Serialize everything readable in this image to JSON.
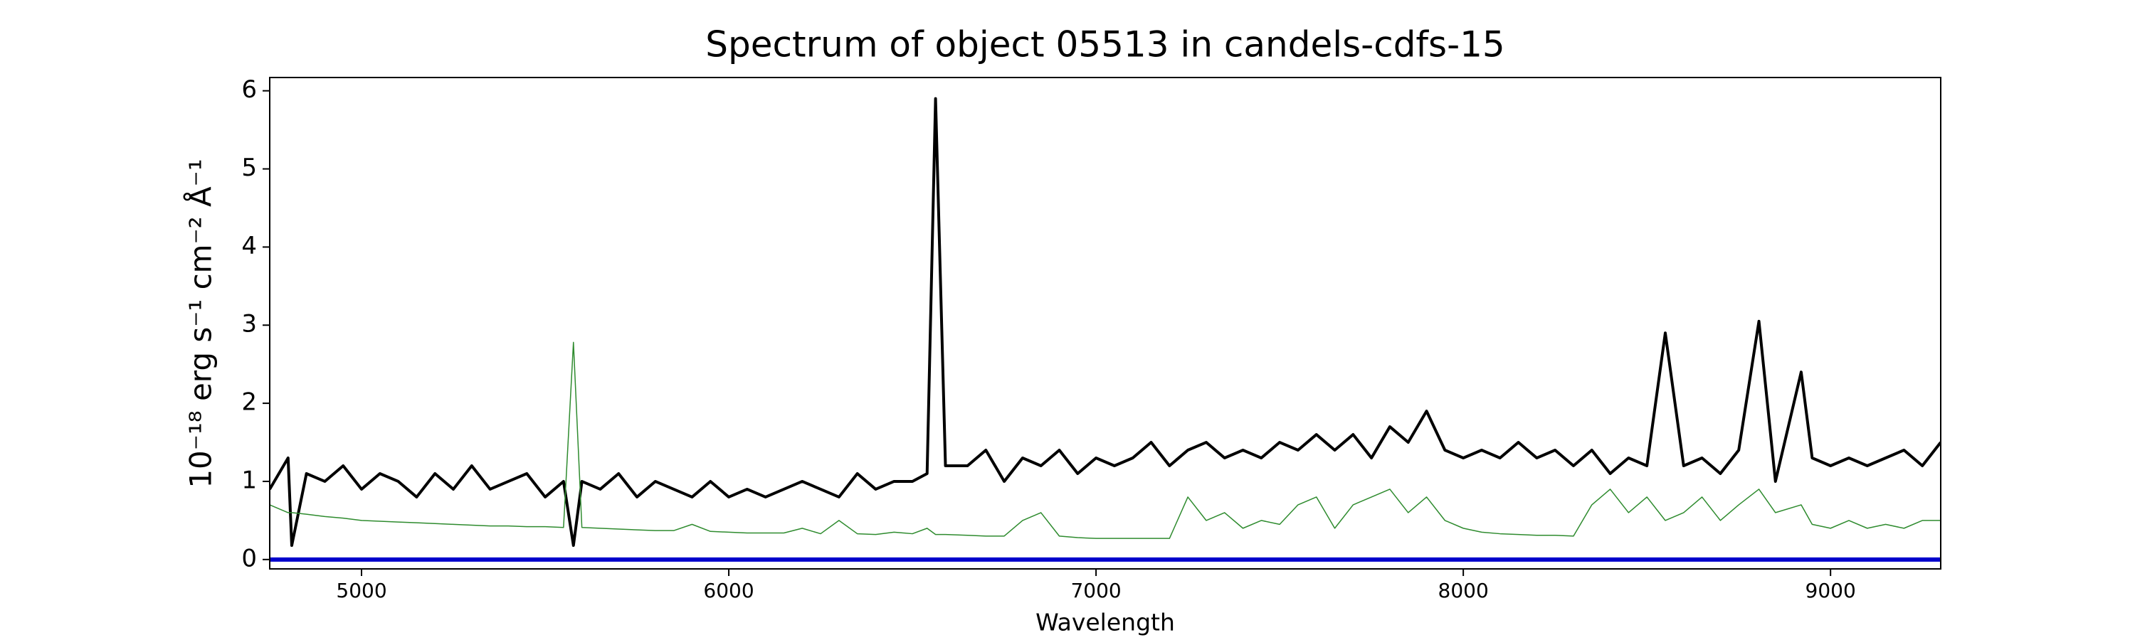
{
  "chart_data": {
    "type": "line",
    "title": "Spectrum of object 05513 in candels-cdfs-15",
    "xlabel": "Wavelength",
    "ylabel": "10⁻¹⁸ erg s⁻¹ cm⁻² Å⁻¹",
    "x": [
      4750,
      4800,
      4810,
      4850,
      4900,
      4950,
      5000,
      5050,
      5100,
      5150,
      5200,
      5250,
      5300,
      5350,
      5400,
      5450,
      5500,
      5550,
      5577,
      5600,
      5650,
      5700,
      5750,
      5800,
      5850,
      5900,
      5950,
      6000,
      6050,
      6100,
      6150,
      6200,
      6250,
      6300,
      6350,
      6400,
      6450,
      6500,
      6540,
      6563,
      6590,
      6650,
      6700,
      6750,
      6800,
      6850,
      6900,
      6950,
      7000,
      7050,
      7100,
      7150,
      7200,
      7250,
      7300,
      7350,
      7400,
      7450,
      7500,
      7550,
      7600,
      7650,
      7700,
      7750,
      7800,
      7850,
      7900,
      7950,
      8000,
      8050,
      8100,
      8150,
      8200,
      8250,
      8300,
      8350,
      8400,
      8450,
      8500,
      8550,
      8600,
      8650,
      8700,
      8750,
      8805,
      8850,
      8920,
      8950,
      9000,
      9050,
      9100,
      9150,
      9200,
      9250,
      9300
    ],
    "series": [
      {
        "color": "#000000",
        "width": 4,
        "values": [
          0.9,
          1.3,
          0.18,
          1.1,
          1.0,
          1.2,
          0.9,
          1.1,
          1.0,
          0.8,
          1.1,
          0.9,
          1.2,
          0.9,
          1.0,
          1.1,
          0.8,
          1.0,
          0.18,
          1.0,
          0.9,
          1.1,
          0.8,
          1.0,
          0.9,
          0.8,
          1.0,
          0.8,
          0.9,
          0.8,
          0.9,
          1.0,
          0.9,
          0.8,
          1.1,
          0.9,
          1.0,
          1.0,
          1.1,
          5.9,
          1.2,
          1.2,
          1.4,
          1.0,
          1.3,
          1.2,
          1.4,
          1.1,
          1.3,
          1.2,
          1.3,
          1.5,
          1.2,
          1.4,
          1.5,
          1.3,
          1.4,
          1.3,
          1.5,
          1.4,
          1.6,
          1.4,
          1.6,
          1.3,
          1.7,
          1.5,
          1.9,
          1.4,
          1.3,
          1.4,
          1.3,
          1.5,
          1.3,
          1.4,
          1.2,
          1.4,
          1.1,
          1.3,
          1.2,
          2.9,
          1.2,
          1.3,
          1.1,
          1.4,
          3.05,
          1.0,
          2.4,
          1.3,
          1.2,
          1.3,
          1.2,
          1.3,
          1.4,
          1.2,
          1.5
        ]
      },
      {
        "color": "#2e8b2e",
        "width": 1.5,
        "values": [
          0.7,
          0.6,
          0.6,
          0.58,
          0.55,
          0.53,
          0.5,
          0.49,
          0.48,
          0.47,
          0.46,
          0.45,
          0.44,
          0.43,
          0.43,
          0.42,
          0.42,
          0.41,
          2.78,
          0.41,
          0.4,
          0.39,
          0.38,
          0.37,
          0.37,
          0.45,
          0.36,
          0.35,
          0.34,
          0.34,
          0.34,
          0.4,
          0.33,
          0.5,
          0.33,
          0.32,
          0.35,
          0.33,
          0.4,
          0.32,
          0.32,
          0.31,
          0.3,
          0.3,
          0.5,
          0.6,
          0.3,
          0.28,
          0.27,
          0.27,
          0.27,
          0.27,
          0.27,
          0.8,
          0.5,
          0.6,
          0.4,
          0.5,
          0.45,
          0.7,
          0.8,
          0.4,
          0.7,
          0.8,
          0.9,
          0.6,
          0.8,
          0.5,
          0.4,
          0.35,
          0.33,
          0.32,
          0.31,
          0.31,
          0.3,
          0.7,
          0.9,
          0.6,
          0.8,
          0.5,
          0.6,
          0.8,
          0.5,
          0.7,
          0.9,
          0.6,
          0.7,
          0.45,
          0.4,
          0.5,
          0.4,
          0.45,
          0.4,
          0.5,
          0.5
        ]
      },
      {
        "color": "#0000cc",
        "width": 6,
        "x": [
          4750,
          9300
        ],
        "values": [
          0,
          0
        ]
      }
    ],
    "xlim": [
      4750,
      9300
    ],
    "ylim": [
      -0.12,
      6.17
    ],
    "xticks": [
      5000,
      6000,
      7000,
      8000,
      9000
    ],
    "yticks": [
      0,
      1,
      2,
      3,
      4,
      5,
      6
    ]
  }
}
